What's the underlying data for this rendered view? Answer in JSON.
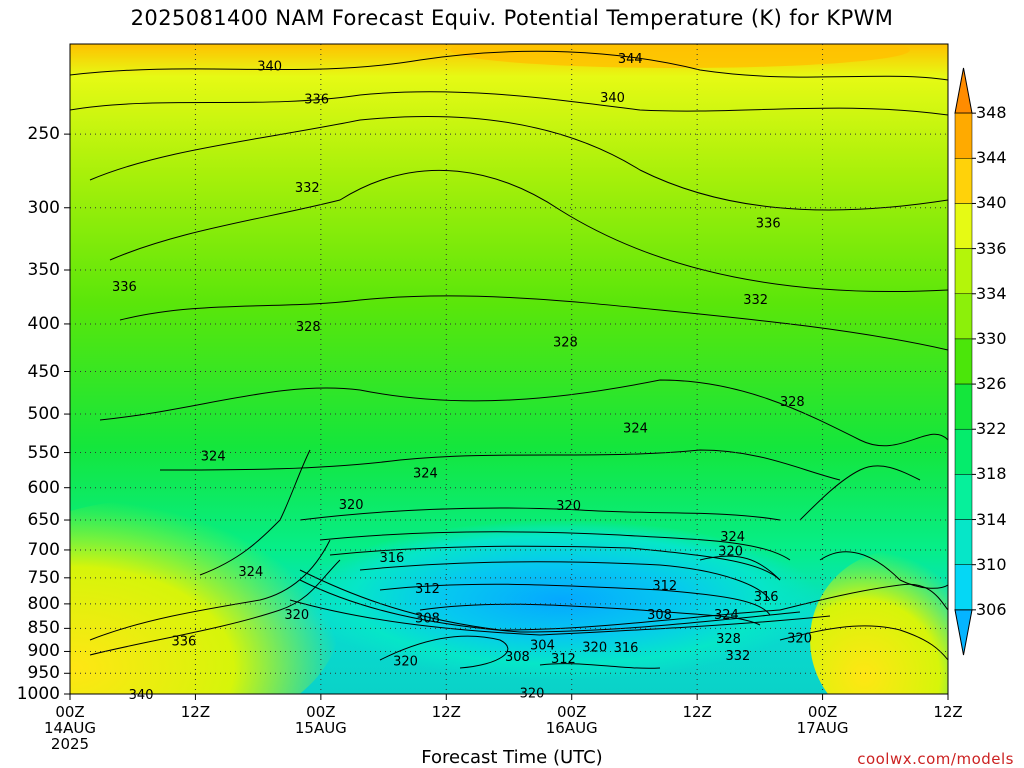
{
  "chart_data": {
    "type": "heatmap",
    "title": "2025081400 NAM Forecast Equiv. Potential Temperature (K) for KPWM",
    "xlabel": "Forecast Time (UTC)",
    "ylabel": "",
    "y_axis_scale": "log",
    "y_axis_inverted": true,
    "y_ticks": [
      "250",
      "300",
      "350",
      "400",
      "450",
      "500",
      "550",
      "600",
      "650",
      "700",
      "750",
      "800",
      "850",
      "900",
      "950",
      "1000"
    ],
    "y_range": [
      200,
      1000
    ],
    "x_ticks": [
      {
        "lines": [
          "00Z",
          "14AUG",
          "2025"
        ]
      },
      {
        "lines": [
          "12Z"
        ]
      },
      {
        "lines": [
          "00Z",
          "15AUG"
        ]
      },
      {
        "lines": [
          "12Z"
        ]
      },
      {
        "lines": [
          "00Z",
          "16AUG"
        ]
      },
      {
        "lines": [
          "12Z"
        ]
      },
      {
        "lines": [
          "00Z",
          "17AUG"
        ]
      },
      {
        "lines": [
          "12Z"
        ]
      }
    ],
    "x_range_hours": [
      0,
      84
    ],
    "grid": true,
    "colorbar": {
      "levels": [
        "306",
        "310",
        "314",
        "318",
        "322",
        "326",
        "330",
        "334",
        "336",
        "340",
        "344",
        "348"
      ],
      "colors": [
        "#05b4ff",
        "#05d7f5",
        "#06e6c8",
        "#06f09b",
        "#05ec6c",
        "#14e63c",
        "#4be60a",
        "#8cf00a",
        "#b4f50a",
        "#e6fa14",
        "#ffd20a",
        "#ffaa00",
        "#ff8c00"
      ],
      "placement": "right"
    },
    "contour_labels": [
      {
        "text": "340",
        "x_hours": 19.1,
        "p": 211
      },
      {
        "text": "336",
        "x_hours": 23.6,
        "p": 229
      },
      {
        "text": "332",
        "x_hours": 22.7,
        "p": 285
      },
      {
        "text": "336",
        "x_hours": 5.2,
        "p": 364
      },
      {
        "text": "328",
        "x_hours": 22.8,
        "p": 402
      },
      {
        "text": "324",
        "x_hours": 13.7,
        "p": 554
      },
      {
        "text": "324",
        "x_hours": 34.0,
        "p": 578
      },
      {
        "text": "320",
        "x_hours": 26.9,
        "p": 625
      },
      {
        "text": "316",
        "x_hours": 30.8,
        "p": 712
      },
      {
        "text": "312",
        "x_hours": 34.2,
        "p": 769
      },
      {
        "text": "308",
        "x_hours": 34.2,
        "p": 827
      },
      {
        "text": "304",
        "x_hours": 45.2,
        "p": 885
      },
      {
        "text": "308",
        "x_hours": 42.8,
        "p": 910
      },
      {
        "text": "312",
        "x_hours": 47.2,
        "p": 915
      },
      {
        "text": "320",
        "x_hours": 32.1,
        "p": 920
      },
      {
        "text": "320",
        "x_hours": 44.2,
        "p": 996
      },
      {
        "text": "324",
        "x_hours": 17.3,
        "p": 737
      },
      {
        "text": "320",
        "x_hours": 21.7,
        "p": 820
      },
      {
        "text": "336",
        "x_hours": 10.9,
        "p": 876
      },
      {
        "text": "340",
        "x_hours": 6.8,
        "p": 1000
      },
      {
        "text": "344",
        "x_hours": 53.6,
        "p": 207
      },
      {
        "text": "340",
        "x_hours": 51.9,
        "p": 228
      },
      {
        "text": "336",
        "x_hours": 66.8,
        "p": 311
      },
      {
        "text": "332",
        "x_hours": 65.6,
        "p": 376
      },
      {
        "text": "328",
        "x_hours": 47.4,
        "p": 418
      },
      {
        "text": "328",
        "x_hours": 69.1,
        "p": 484
      },
      {
        "text": "324",
        "x_hours": 54.1,
        "p": 517
      },
      {
        "text": "320",
        "x_hours": 47.7,
        "p": 626
      },
      {
        "text": "312",
        "x_hours": 56.9,
        "p": 763
      },
      {
        "text": "308",
        "x_hours": 56.4,
        "p": 820
      },
      {
        "text": "320",
        "x_hours": 50.2,
        "p": 889
      },
      {
        "text": "316",
        "x_hours": 53.2,
        "p": 890
      },
      {
        "text": "324",
        "x_hours": 63.4,
        "p": 676
      },
      {
        "text": "320",
        "x_hours": 63.2,
        "p": 701
      },
      {
        "text": "316",
        "x_hours": 66.6,
        "p": 785
      },
      {
        "text": "324",
        "x_hours": 62.8,
        "p": 820
      },
      {
        "text": "328",
        "x_hours": 63.0,
        "p": 870
      },
      {
        "text": "320",
        "x_hours": 69.8,
        "p": 869
      },
      {
        "text": "332",
        "x_hours": 63.9,
        "p": 908
      }
    ]
  },
  "credit": "coolwx.com/models"
}
